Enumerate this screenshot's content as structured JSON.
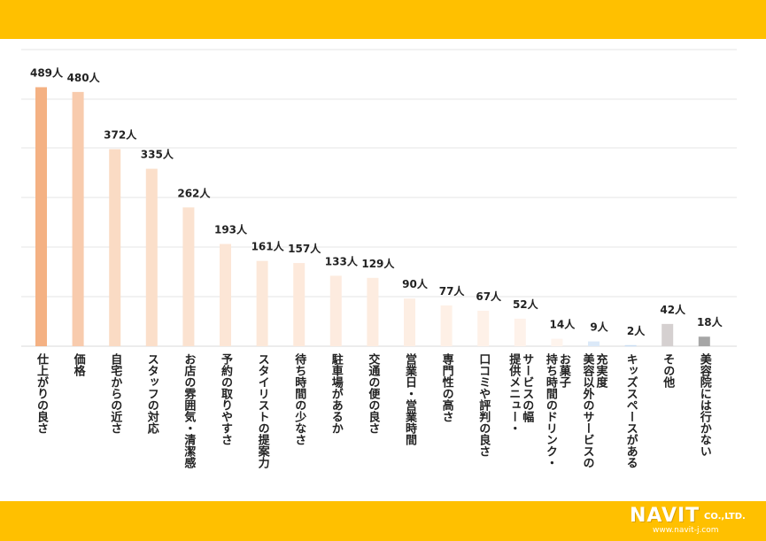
{
  "chart_data": {
    "type": "bar",
    "unit_suffix": "人",
    "categories": [
      "仕上がりの良さ",
      "価格",
      "自宅からの近さ",
      "スタッフの対応",
      "お店の雰囲気・清潔感",
      "予約の取りやすさ",
      "スタイリストの提案力",
      "待ち時間の少なさ",
      "駐車場があるか",
      "交通の便の良さ",
      "営業日・営業時間",
      "専門性の高さ",
      "口コミや評判の良さ",
      "提供メニュー・サービスの幅",
      "持ち時間のドリンク・お菓子",
      "美容以外のサービスの充実度",
      "キッズスペースがある",
      "その他",
      "美容院には行かない"
    ],
    "category_lines": [
      [
        "仕上がりの良さ"
      ],
      [
        "価格"
      ],
      [
        "自宅からの近さ"
      ],
      [
        "スタッフの対応"
      ],
      [
        "お店の雰囲気・清潔感"
      ],
      [
        "予約の取りやすさ"
      ],
      [
        "スタイリストの提案力"
      ],
      [
        "待ち時間の少なさ"
      ],
      [
        "駐車場があるか"
      ],
      [
        "交通の便の良さ"
      ],
      [
        "営業日・営業時間"
      ],
      [
        "専門性の高さ"
      ],
      [
        "口コミや評判の良さ"
      ],
      [
        "提供メニュー・",
        "サービスの幅"
      ],
      [
        "持ち時間のドリンク・",
        "お菓子"
      ],
      [
        "美容以外のサービスの",
        "充実度"
      ],
      [
        "キッズスペースがある"
      ],
      [
        "その他"
      ],
      [
        "美容院には行かない"
      ]
    ],
    "values": [
      489,
      480,
      372,
      335,
      262,
      193,
      161,
      157,
      133,
      129,
      90,
      77,
      67,
      52,
      14,
      9,
      2,
      42,
      18
    ],
    "colors": [
      "#f4b183",
      "#f8cbad",
      "#fadbc4",
      "#fbdfca",
      "#fbe2d0",
      "#fce6d6",
      "#fce8d9",
      "#fde9db",
      "#fdebdf",
      "#fdece0",
      "#fdeee3",
      "#fef0e6",
      "#fef1e8",
      "#fef2ea",
      "#fef4ed",
      "#dbe9f8",
      "#c9ddf2",
      "#d5d0d0",
      "#a6a6a6"
    ],
    "ylim": [
      0,
      560
    ],
    "grid": true
  },
  "logo": {
    "brand": "NAVIT",
    "company": "CO.,LTD.",
    "url": "www.navit-j.com"
  }
}
